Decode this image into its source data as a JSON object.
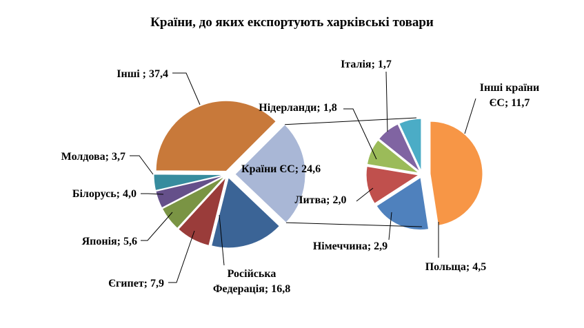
{
  "chart_data": [
    {
      "type": "pie",
      "title": "Країни, до яких експортують харківські товари",
      "slices": [
        {
          "name": "Країни ЄС",
          "value": 24.6,
          "label": "Країни ЄС; 24,6",
          "color": "#A9B7D6"
        },
        {
          "name": "Російська Федерація",
          "value": 16.8,
          "label": "Російська Федерація; 16,8",
          "color": "#3B6496"
        },
        {
          "name": "Єгипет",
          "value": 7.9,
          "label": "Єгипет; 7,9",
          "color": "#9A3C3A"
        },
        {
          "name": "Японія",
          "value": 5.6,
          "label": "Японія; 5,6",
          "color": "#7A9444"
        },
        {
          "name": "Білорусь",
          "value": 4.0,
          "label": "Білорусь; 4,0",
          "color": "#65508A"
        },
        {
          "name": "Молдова",
          "value": 3.7,
          "label": "Молдова; 3,7",
          "color": "#378C9E"
        },
        {
          "name": "Інші",
          "value": 37.4,
          "label": "Інші ; 37,4",
          "color": "#C8793A"
        }
      ]
    },
    {
      "type": "pie",
      "slices": [
        {
          "name": "Інші країни ЄС",
          "value": 11.7,
          "label": "Інші країни ЄС; 11,7",
          "color": "#F79646"
        },
        {
          "name": "Польща",
          "value": 4.5,
          "label": "Польща; 4,5",
          "color": "#4F81BD"
        },
        {
          "name": "Німеччина",
          "value": 2.9,
          "label": "Німеччина; 2,9",
          "color": "#C0504D"
        },
        {
          "name": "Литва",
          "value": 2.0,
          "label": "Литва; 2,0",
          "color": "#9BBB59"
        },
        {
          "name": "Нідерланди",
          "value": 1.8,
          "label": "Нідерланди; 1,8",
          "color": "#8064A2"
        },
        {
          "name": "Італія",
          "value": 1.7,
          "label": "Італія; 1,7",
          "color": "#4BACC6"
        }
      ]
    }
  ]
}
